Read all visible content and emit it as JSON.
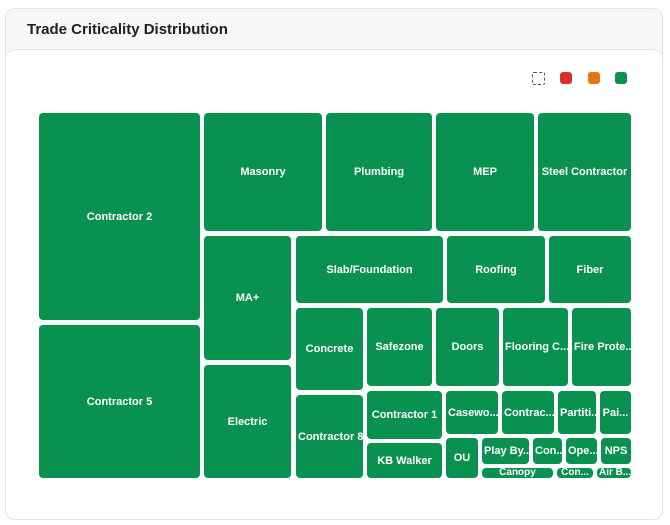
{
  "card": {
    "title": "Trade Criticality Distribution"
  },
  "toolbar": {
    "select_icon": "dashed-select-icon"
  },
  "legend": {
    "colors": [
      "#dc2f2a",
      "#e67612",
      "#0a9150"
    ]
  },
  "tiles": [
    "Contractor 2",
    "Contractor 5",
    "Masonry",
    "Plumbing",
    "MEP",
    "Steel Contractor",
    "MA+",
    "Electric",
    "Slab/Foundation",
    "Roofing",
    "Fiber",
    "Concrete",
    "Safezone",
    "Doors",
    "Flooring C...",
    "Fire Prote...",
    "Contractor 8",
    "Contractor 1",
    "Casewo...",
    "Contrac...",
    "Partiti...",
    "Pai...",
    "KB Walker",
    "OU",
    "Play By...",
    "Con...",
    "Ope...",
    "NPS",
    "Canopy",
    "Con...",
    "Air B..."
  ]
}
